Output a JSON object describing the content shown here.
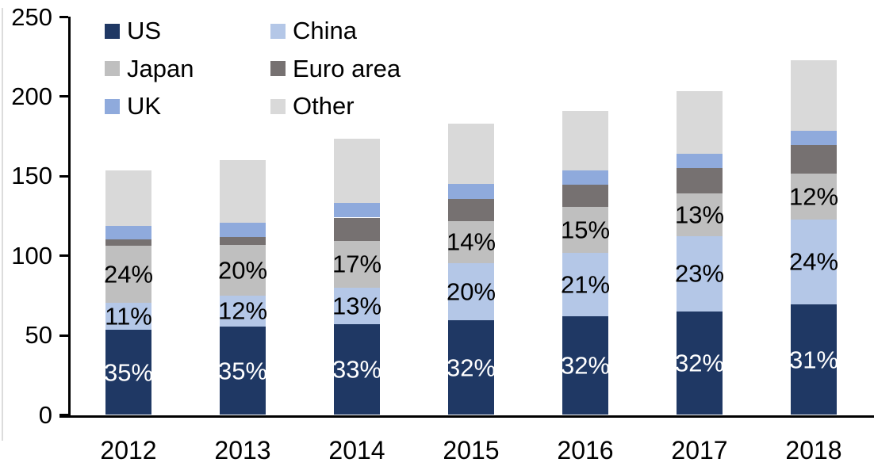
{
  "chart_data": {
    "type": "bar",
    "stacked": true,
    "title": "",
    "xlabel": "",
    "ylabel": "",
    "categories": [
      "2012",
      "2013",
      "2014",
      "2015",
      "2016",
      "2017",
      "2018"
    ],
    "series": [
      {
        "name": "US",
        "color": "#1F3864",
        "values": [
          53.5,
          55.5,
          57,
          59.5,
          62,
          65,
          69.5
        ],
        "data_labels": [
          "35%",
          "35%",
          "33%",
          "32%",
          "32%",
          "32%",
          "31%"
        ],
        "label_color": "#ffffff"
      },
      {
        "name": "China",
        "color": "#B4C7E7",
        "values": [
          17,
          19.5,
          23,
          36,
          40,
          47.5,
          53.5
        ],
        "data_labels": [
          "11%",
          "12%",
          "13%",
          "20%",
          "21%",
          "23%",
          "24%"
        ],
        "label_color": "#000000"
      },
      {
        "name": "Japan",
        "color": "#BFBFBF",
        "values": [
          36,
          32,
          29.5,
          26.5,
          28.5,
          26.5,
          28.5
        ],
        "data_labels": [
          "24%",
          "20%",
          "17%",
          "14%",
          "15%",
          "13%",
          "12%"
        ],
        "label_color": "#000000"
      },
      {
        "name": "Euro area",
        "color": "#767171",
        "values": [
          4,
          5,
          14.5,
          13.5,
          14,
          16,
          18
        ]
      },
      {
        "name": "UK",
        "color": "#8FAADC",
        "values": [
          8.5,
          9,
          9,
          9.5,
          9,
          9,
          9
        ]
      },
      {
        "name": "Other",
        "color": "#D9D9D9",
        "values": [
          34.5,
          39,
          40.5,
          38,
          37.5,
          39.5,
          44.5
        ]
      }
    ],
    "totals": [
      153.5,
      160,
      173.5,
      183,
      191,
      203.5,
      223
    ],
    "ylim": [
      0,
      250
    ],
    "yticks": [
      0,
      50,
      100,
      150,
      200,
      250
    ],
    "grid": false,
    "legend_position": "top-left",
    "legend_columns": 2
  }
}
